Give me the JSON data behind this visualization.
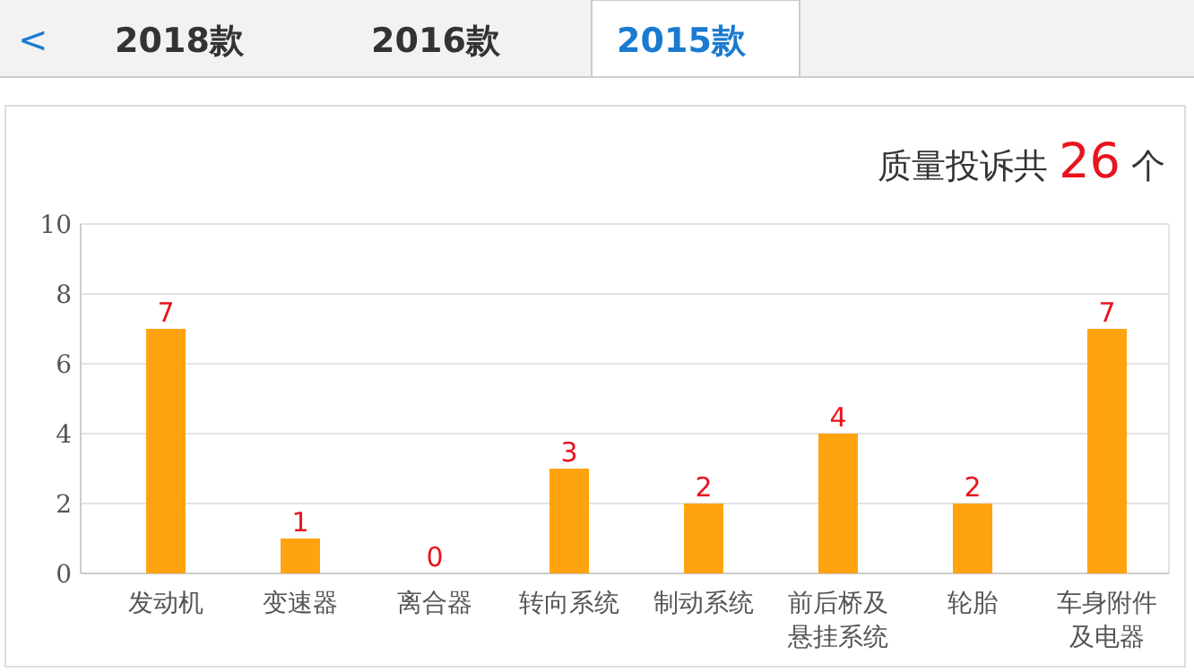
{
  "chart_data": {
    "type": "bar",
    "title": "质量投诉共 26 个",
    "categories": [
      "发动机",
      "变速器",
      "离合器",
      "转向系统",
      "制动系统",
      "前后桥及悬挂系统",
      "轮胎",
      "车身附件及电器"
    ],
    "values": [
      7,
      1,
      0,
      3,
      2,
      4,
      2,
      7
    ],
    "color": "#ffa310",
    "ylim": [
      0,
      10
    ],
    "yticks": [
      0,
      2,
      4,
      6,
      8,
      10
    ],
    "grid": "y",
    "data_labels": true,
    "annotations": [
      "<",
      "2018款",
      "2016款",
      "2015款"
    ]
  }
}
